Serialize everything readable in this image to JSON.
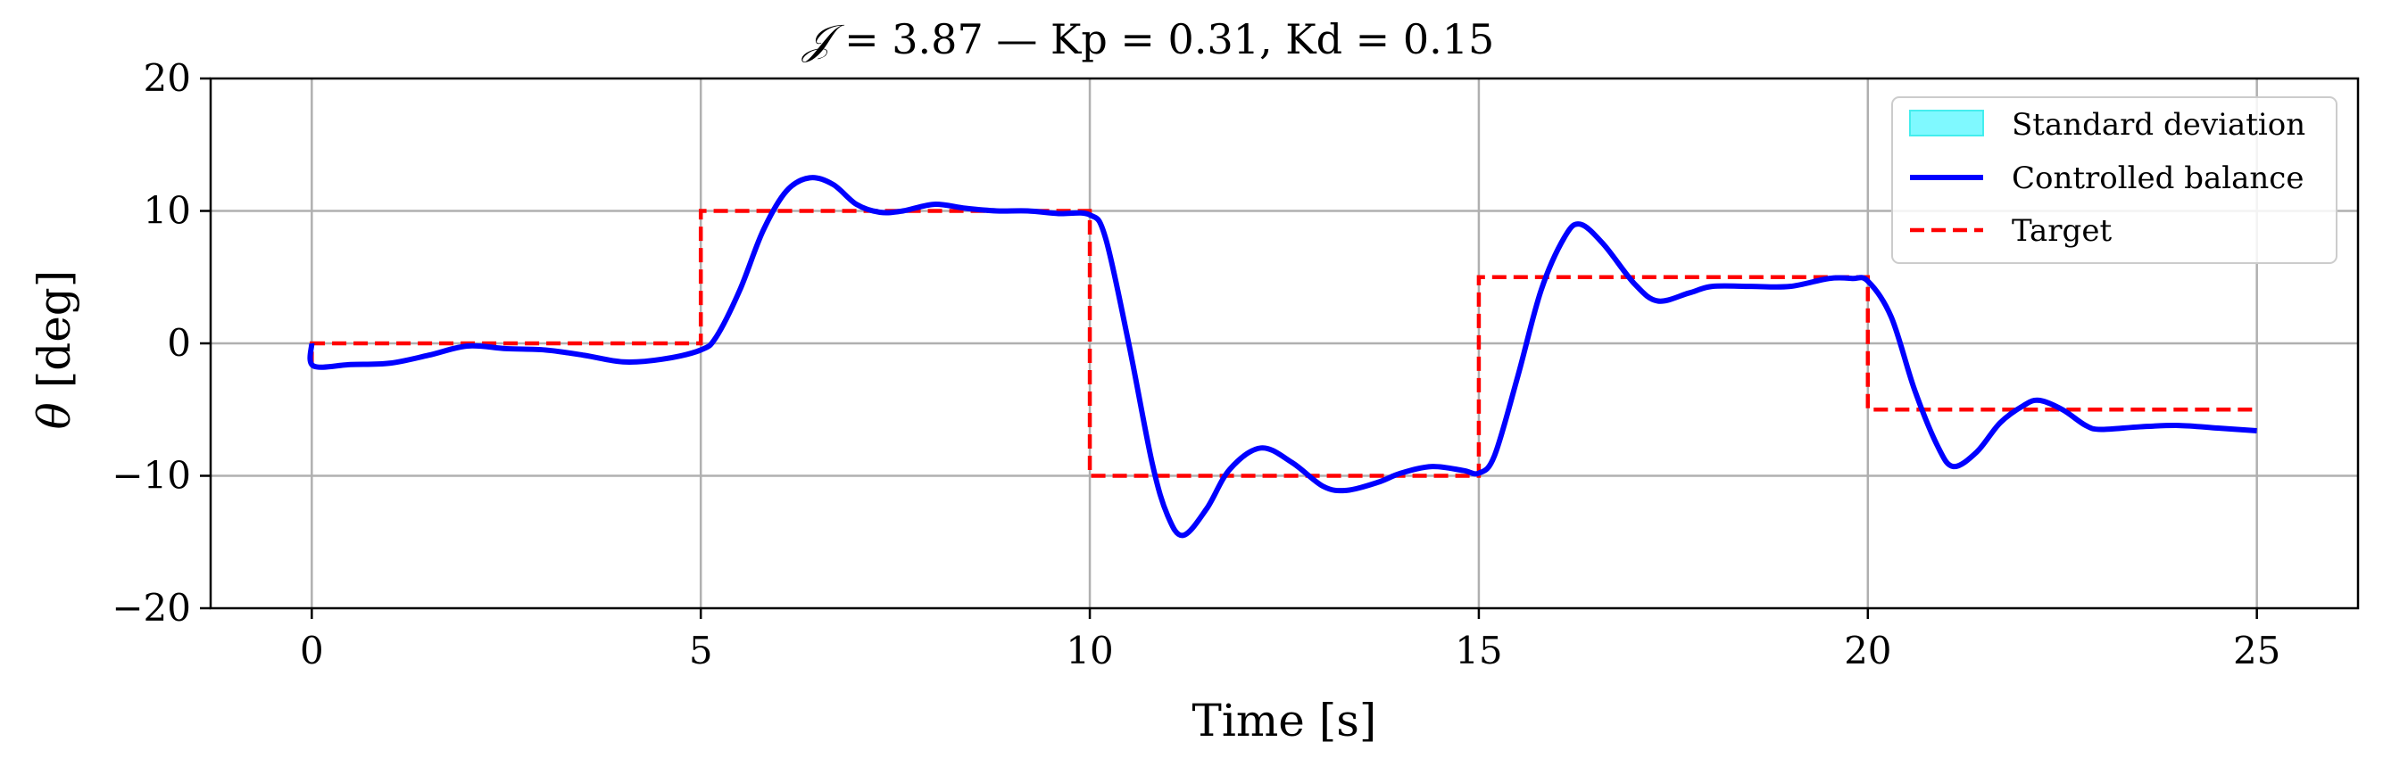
{
  "chart_data": {
    "type": "line",
    "title": {
      "j_symbol": "𝒥",
      "j_value": " = 3.87 — Kp = 0.31, Kd = 0.15"
    },
    "xlabel": "Time [s]",
    "ylabel": {
      "symbol": "θ",
      "unit": " [deg]"
    },
    "xlim": [
      -1.3,
      26.3
    ],
    "ylim": [
      -20,
      20
    ],
    "xticks": [
      0,
      5,
      10,
      15,
      20,
      25
    ],
    "yticks": [
      -20,
      -10,
      0,
      10,
      20
    ],
    "xtick_labels": [
      "0",
      "5",
      "10",
      "15",
      "20",
      "25"
    ],
    "ytick_labels": [
      "−20",
      "−10",
      "0",
      "10",
      "20"
    ],
    "grid": true,
    "legend_position": "top-right",
    "legend": [
      {
        "label": "Standard deviation",
        "style": "patch",
        "color": "#7ff9ff",
        "edge": "#44eeee"
      },
      {
        "label": "Controlled balance",
        "style": "solid",
        "color": "#0000ff"
      },
      {
        "label": "Target",
        "style": "dashed",
        "color": "#ff0000"
      }
    ],
    "series": [
      {
        "name": "Target",
        "color": "#ff0000",
        "style": "dashed",
        "x": [
          0,
          0,
          5,
          5,
          10,
          10,
          15,
          15,
          20,
          20,
          25
        ],
        "y": [
          -1.7,
          0,
          0,
          10,
          10,
          -10,
          -10,
          5,
          5,
          -5,
          -5
        ]
      },
      {
        "name": "Controlled balance",
        "color": "#0000ff",
        "style": "solid",
        "x": [
          0,
          0.02,
          0.5,
          1.0,
          1.5,
          2.0,
          2.5,
          3.0,
          3.5,
          4.0,
          4.5,
          5.0,
          5.2,
          5.5,
          5.8,
          6.1,
          6.4,
          6.7,
          7.0,
          7.3,
          7.6,
          8.0,
          8.4,
          8.8,
          9.2,
          9.6,
          10.0,
          10.2,
          10.5,
          10.8,
          11.0,
          11.2,
          11.5,
          11.8,
          12.2,
          12.6,
          13.0,
          13.3,
          13.7,
          14.0,
          14.4,
          14.8,
          15.0,
          15.2,
          15.5,
          15.8,
          16.1,
          16.3,
          16.6,
          17.0,
          17.3,
          17.7,
          18.0,
          18.5,
          19.0,
          19.5,
          19.8,
          20.0,
          20.3,
          20.6,
          20.9,
          21.1,
          21.4,
          21.7,
          22.0,
          22.2,
          22.5,
          22.8,
          23.0,
          23.5,
          24.0,
          24.5,
          25.0
        ],
        "y": [
          0.0,
          -1.7,
          -1.6,
          -1.5,
          -0.9,
          -0.2,
          -0.4,
          -0.5,
          -0.9,
          -1.4,
          -1.2,
          -0.5,
          0.5,
          4.0,
          8.5,
          11.5,
          12.5,
          12.0,
          10.5,
          9.9,
          10.0,
          10.5,
          10.2,
          10.0,
          10.0,
          9.8,
          9.7,
          8.0,
          0.0,
          -9.0,
          -13.0,
          -14.5,
          -12.5,
          -9.5,
          -7.9,
          -9.0,
          -10.8,
          -11.1,
          -10.5,
          -9.8,
          -9.3,
          -9.6,
          -9.8,
          -8.5,
          -2.5,
          4.0,
          8.0,
          9.0,
          7.5,
          4.5,
          3.2,
          3.8,
          4.3,
          4.3,
          4.3,
          4.9,
          4.9,
          4.7,
          2.0,
          -3.5,
          -7.8,
          -9.3,
          -8.2,
          -6.0,
          -4.7,
          -4.3,
          -5.0,
          -6.2,
          -6.5,
          -6.3,
          -6.2,
          -6.4,
          -6.6
        ]
      }
    ]
  }
}
